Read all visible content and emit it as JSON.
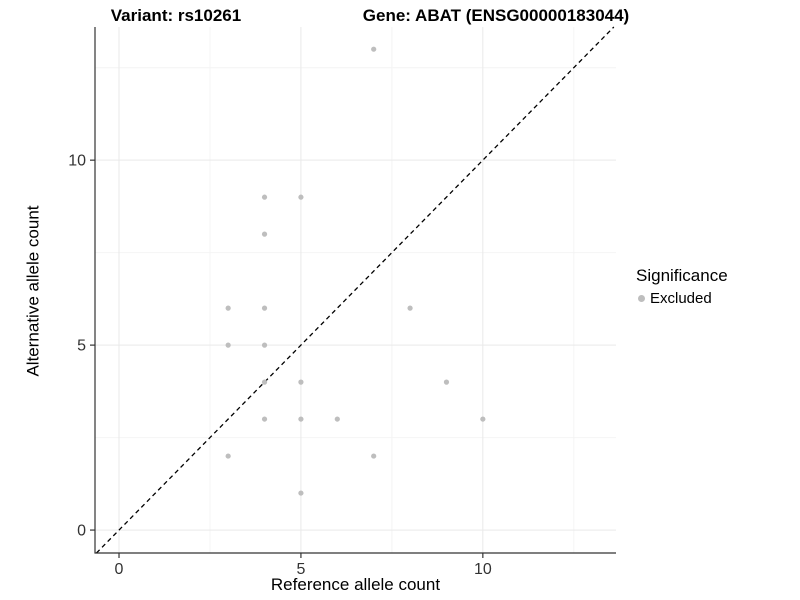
{
  "titles": {
    "variant": "Variant: rs10261",
    "gene": "Gene: ABAT (ENSG00000183044)"
  },
  "legend": {
    "title": "Significance",
    "items": [
      {
        "label": "Excluded",
        "color": "#bebebe"
      }
    ]
  },
  "chart_data": {
    "type": "scatter",
    "title": "Variant: rs10261 / Gene: ABAT (ENSG00000183044)",
    "xlabel": "Reference allele count",
    "ylabel": "Alternative allele count",
    "xlim": [
      -0.66,
      13.66
    ],
    "ylim": [
      -0.62,
      13.6
    ],
    "x_breaks": [
      0,
      5,
      10
    ],
    "y_breaks": [
      0,
      5,
      10
    ],
    "x_minor_breaks": [
      2.5,
      7.5,
      12.5
    ],
    "y_minor_breaks": [
      2.5,
      7.5,
      12.5
    ],
    "grid": true,
    "legend_position": "right",
    "identity_line": {
      "slope": 1,
      "intercept": 0,
      "style": "dashed",
      "color": "#000000"
    },
    "series": [
      {
        "name": "Excluded",
        "color": "#bebebe",
        "points": [
          {
            "x": 7,
            "y": 13
          },
          {
            "x": 4,
            "y": 9
          },
          {
            "x": 5,
            "y": 9
          },
          {
            "x": 4,
            "y": 8
          },
          {
            "x": 3,
            "y": 6
          },
          {
            "x": 4,
            "y": 6
          },
          {
            "x": 8,
            "y": 6
          },
          {
            "x": 3,
            "y": 5
          },
          {
            "x": 4,
            "y": 5
          },
          {
            "x": 4,
            "y": 4
          },
          {
            "x": 5,
            "y": 4
          },
          {
            "x": 9,
            "y": 4
          },
          {
            "x": 4,
            "y": 3
          },
          {
            "x": 5,
            "y": 3
          },
          {
            "x": 6,
            "y": 3
          },
          {
            "x": 10,
            "y": 3
          },
          {
            "x": 3,
            "y": 2
          },
          {
            "x": 7,
            "y": 2
          },
          {
            "x": 5,
            "y": 1
          }
        ]
      }
    ]
  },
  "colors": {
    "point": "#bebebe",
    "grid_major": "#e9e9e9",
    "grid_minor": "#f4f4f4",
    "axis_line": "#333333",
    "tick_label": "#333333",
    "dashed_line": "#000000"
  }
}
